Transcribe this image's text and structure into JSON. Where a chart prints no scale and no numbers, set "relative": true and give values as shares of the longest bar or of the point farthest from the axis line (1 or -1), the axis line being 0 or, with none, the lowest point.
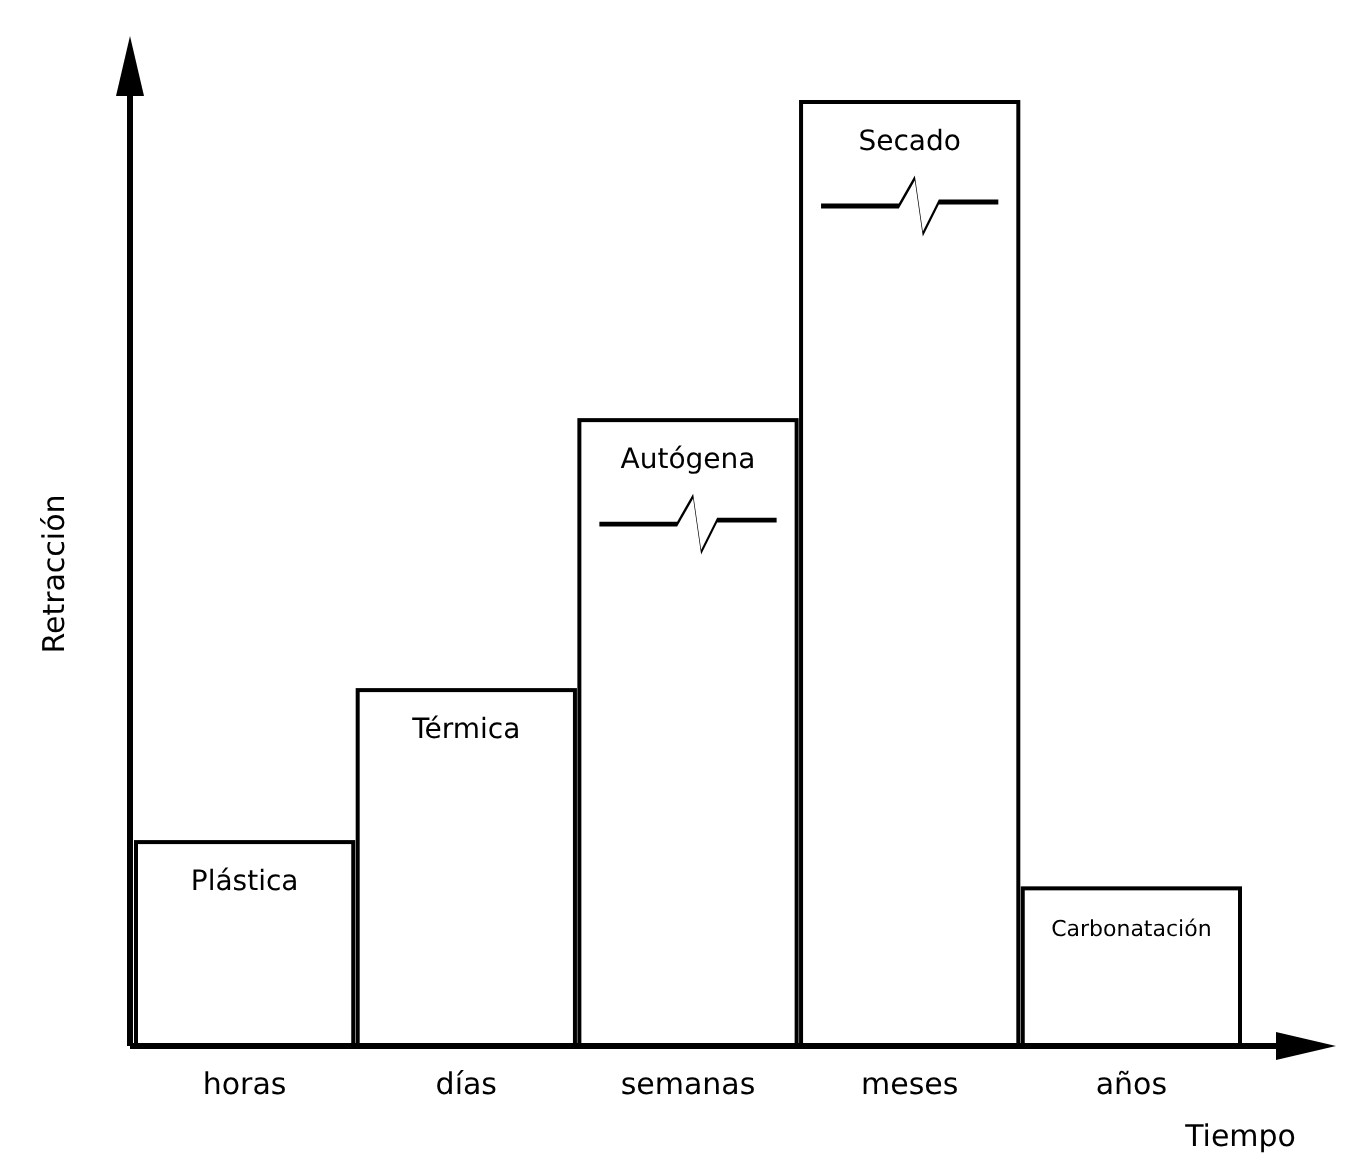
{
  "chart_data": {
    "type": "bar",
    "relative": true,
    "xlabel": "Tiempo",
    "ylabel": "Retracción",
    "categories": [
      "horas",
      "días",
      "semanas",
      "meses",
      "años"
    ],
    "series": [
      {
        "name": "Plástica",
        "color": "#000000",
        "values": [
          0.216,
          null,
          null,
          null,
          null
        ]
      },
      {
        "name": "Térmica",
        "color": "#000000",
        "values": [
          null,
          0.377,
          null,
          null,
          null
        ]
      },
      {
        "name": "Autógena",
        "color": "#000000",
        "values": [
          null,
          null,
          0.663,
          null,
          null
        ]
      },
      {
        "name": "Secado",
        "color": "#000000",
        "values": [
          null,
          null,
          null,
          1,
          null
        ]
      },
      {
        "name": "Carbonatación",
        "color": "#000000",
        "values": [
          null,
          null,
          null,
          null,
          0.167
        ]
      }
    ]
  }
}
